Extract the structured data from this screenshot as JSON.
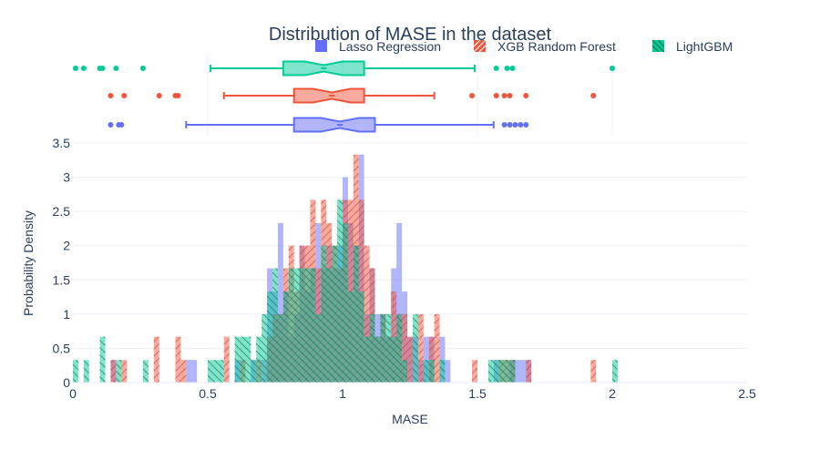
{
  "chart_data": {
    "type": "histogram",
    "title": "Distribution of MASE in the dataset",
    "xlabel": "MASE",
    "ylabel": "Probability Density",
    "xlim": [
      0,
      2.5
    ],
    "ylim": [
      0,
      3.5
    ],
    "x_ticks": [
      0,
      0.5,
      1,
      1.5,
      2,
      2.5
    ],
    "x_tick_labels": [
      "0",
      "0.5",
      "1",
      "1.5",
      "2",
      "2.5"
    ],
    "y_ticks": [
      0,
      0.5,
      1,
      1.5,
      2,
      2.5,
      3,
      3.5
    ],
    "y_tick_labels": [
      "0",
      "0.5",
      "1",
      "1.5",
      "2",
      "2.5",
      "3",
      "3.5"
    ],
    "bin_width": 0.02,
    "grid": true,
    "legend_position": "top-right",
    "marginal": "box",
    "series": [
      {
        "name": "Lasso Regression",
        "color": "#636efa",
        "pattern": "solid",
        "bins": [
          [
            0.14,
            0.33
          ],
          [
            0.42,
            0.33
          ],
          [
            0.44,
            0.33
          ],
          [
            0.6,
            0.33
          ],
          [
            0.66,
            0.33
          ],
          [
            0.7,
            0.33
          ],
          [
            0.72,
            1.67
          ],
          [
            0.74,
            1.33
          ],
          [
            0.76,
            2.33
          ],
          [
            0.78,
            1.33
          ],
          [
            0.8,
            0.67
          ],
          [
            0.82,
            1.0
          ],
          [
            0.84,
            2.0
          ],
          [
            0.86,
            1.33
          ],
          [
            0.88,
            1.67
          ],
          [
            0.9,
            2.33
          ],
          [
            0.92,
            1.67
          ],
          [
            0.94,
            2.0
          ],
          [
            0.96,
            1.67
          ],
          [
            0.98,
            2.0
          ],
          [
            1.0,
            3.0
          ],
          [
            1.02,
            2.33
          ],
          [
            1.04,
            2.0
          ],
          [
            1.06,
            3.33
          ],
          [
            1.08,
            1.0
          ],
          [
            1.1,
            1.67
          ],
          [
            1.12,
            1.0
          ],
          [
            1.14,
            1.0
          ],
          [
            1.16,
            0.67
          ],
          [
            1.18,
            1.67
          ],
          [
            1.2,
            2.33
          ],
          [
            1.22,
            1.33
          ],
          [
            1.24,
            0.67
          ],
          [
            1.26,
            0.67
          ],
          [
            1.28,
            0.33
          ],
          [
            1.3,
            0.67
          ],
          [
            1.32,
            0.67
          ],
          [
            1.36,
            0.67
          ],
          [
            1.38,
            0.33
          ],
          [
            1.56,
            0.33
          ],
          [
            1.62,
            0.33
          ],
          [
            1.64,
            0.33
          ],
          [
            1.66,
            0.33
          ],
          [
            1.68,
            0.33
          ]
        ]
      },
      {
        "name": "XGB Random Forest",
        "color": "#ef553b",
        "pattern": "diagonal",
        "bins": [
          [
            0.14,
            0.33
          ],
          [
            0.18,
            0.33
          ],
          [
            0.3,
            0.67
          ],
          [
            0.38,
            0.67
          ],
          [
            0.4,
            0.33
          ],
          [
            0.56,
            0.67
          ],
          [
            0.62,
            0.33
          ],
          [
            0.68,
            0.33
          ],
          [
            0.72,
            0.67
          ],
          [
            0.74,
            1.0
          ],
          [
            0.76,
            1.0
          ],
          [
            0.78,
            1.67
          ],
          [
            0.8,
            2.0
          ],
          [
            0.82,
            1.33
          ],
          [
            0.84,
            2.0
          ],
          [
            0.86,
            2.0
          ],
          [
            0.88,
            2.67
          ],
          [
            0.9,
            1.67
          ],
          [
            0.92,
            2.67
          ],
          [
            0.94,
            2.33
          ],
          [
            0.96,
            2.0
          ],
          [
            0.98,
            1.67
          ],
          [
            1.0,
            2.67
          ],
          [
            1.02,
            2.67
          ],
          [
            1.04,
            3.33
          ],
          [
            1.06,
            2.67
          ],
          [
            1.08,
            2.0
          ],
          [
            1.1,
            1.67
          ],
          [
            1.12,
            0.67
          ],
          [
            1.14,
            1.0
          ],
          [
            1.16,
            0.67
          ],
          [
            1.18,
            1.33
          ],
          [
            1.2,
            1.0
          ],
          [
            1.22,
            1.0
          ],
          [
            1.24,
            0.67
          ],
          [
            1.28,
            1.0
          ],
          [
            1.32,
            0.67
          ],
          [
            1.34,
            1.0
          ],
          [
            1.48,
            0.33
          ],
          [
            1.58,
            0.33
          ],
          [
            1.6,
            0.33
          ],
          [
            1.62,
            0.33
          ],
          [
            1.68,
            0.33
          ],
          [
            1.92,
            0.33
          ]
        ]
      },
      {
        "name": "LightGBM",
        "color": "#00cc96",
        "pattern": "backslash",
        "bins": [
          [
            0.0,
            0.33
          ],
          [
            0.04,
            0.33
          ],
          [
            0.1,
            0.67
          ],
          [
            0.16,
            0.33
          ],
          [
            0.26,
            0.33
          ],
          [
            0.5,
            0.33
          ],
          [
            0.52,
            0.33
          ],
          [
            0.54,
            0.33
          ],
          [
            0.6,
            0.67
          ],
          [
            0.62,
            0.67
          ],
          [
            0.64,
            0.67
          ],
          [
            0.66,
            0.33
          ],
          [
            0.68,
            0.67
          ],
          [
            0.7,
            1.0
          ],
          [
            0.72,
            1.33
          ],
          [
            0.74,
            1.67
          ],
          [
            0.76,
            1.0
          ],
          [
            0.78,
            1.33
          ],
          [
            0.8,
            1.67
          ],
          [
            0.82,
            1.67
          ],
          [
            0.84,
            1.67
          ],
          [
            0.86,
            1.67
          ],
          [
            0.88,
            1.67
          ],
          [
            0.9,
            1.0
          ],
          [
            0.92,
            2.0
          ],
          [
            0.94,
            1.67
          ],
          [
            0.96,
            2.0
          ],
          [
            0.98,
            2.67
          ],
          [
            1.0,
            2.33
          ],
          [
            1.02,
            1.33
          ],
          [
            1.04,
            2.0
          ],
          [
            1.06,
            1.33
          ],
          [
            1.08,
            0.67
          ],
          [
            1.1,
            1.0
          ],
          [
            1.12,
            0.67
          ],
          [
            1.14,
            1.0
          ],
          [
            1.16,
            1.0
          ],
          [
            1.18,
            0.67
          ],
          [
            1.2,
            1.0
          ],
          [
            1.22,
            0.33
          ],
          [
            1.26,
            1.0
          ],
          [
            1.3,
            0.33
          ],
          [
            1.32,
            0.33
          ],
          [
            1.36,
            0.33
          ],
          [
            1.54,
            0.33
          ],
          [
            1.56,
            0.33
          ],
          [
            1.58,
            0.33
          ],
          [
            1.6,
            0.33
          ],
          [
            1.62,
            0.33
          ],
          [
            2.0,
            0.33
          ]
        ]
      }
    ],
    "boxes": [
      {
        "name": "LightGBM",
        "color": "#00cc96",
        "whisker_low": 0.51,
        "q1": 0.78,
        "median": 0.93,
        "q3": 1.08,
        "whisker_high": 1.49,
        "notch": [
          0.86,
          1.0
        ],
        "outliers": [
          0.01,
          0.04,
          0.1,
          0.11,
          0.16,
          0.26,
          1.57,
          1.61,
          1.63,
          2.0
        ]
      },
      {
        "name": "XGB Random Forest",
        "color": "#ef553b",
        "whisker_low": 0.56,
        "q1": 0.82,
        "median": 0.96,
        "q3": 1.08,
        "whisker_high": 1.34,
        "notch": [
          0.89,
          1.03
        ],
        "outliers": [
          0.14,
          0.19,
          0.32,
          0.38,
          0.39,
          1.48,
          1.57,
          1.6,
          1.62,
          1.68,
          1.93
        ]
      },
      {
        "name": "Lasso Regression",
        "color": "#636efa",
        "whisker_low": 0.42,
        "q1": 0.82,
        "median": 0.99,
        "q3": 1.12,
        "whisker_high": 1.56,
        "notch": [
          0.92,
          1.06
        ],
        "outliers": [
          0.14,
          0.17,
          0.18,
          1.6,
          1.62,
          1.64,
          1.66,
          1.68
        ]
      }
    ]
  }
}
